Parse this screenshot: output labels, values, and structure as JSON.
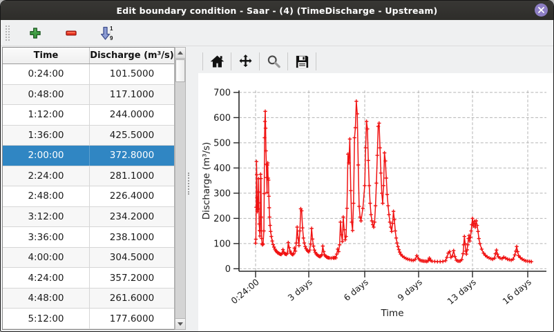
{
  "window": {
    "title": "Edit boundary condition - Saar -  (4) (TimeDischarge - Upstream)"
  },
  "icons": {
    "close": "x-in-circle",
    "add": "green-plus",
    "remove": "red-minus",
    "sort": "blue-arrow-down-1-9",
    "home": "house",
    "pan": "four-way-arrows",
    "zoom": "magnifier",
    "save": "floppy-disk",
    "scroll_up": "triangle-up",
    "scroll_down": "triangle-down"
  },
  "colors": {
    "titlebar_bg": "#302f2c",
    "close_button_bg": "#8d7ec4",
    "selection_blue": "#3086c3",
    "series_red": "#f01212",
    "accent_green": "#3f9e43",
    "accent_red": "#e8321e",
    "sort_blue": "#7486c4"
  },
  "table": {
    "columns": [
      "Time",
      "Discharge (m³/s)"
    ],
    "selected_row_index": 4,
    "rows": [
      [
        "0:24:00",
        "101.5000"
      ],
      [
        "0:48:00",
        "117.1000"
      ],
      [
        "1:12:00",
        "244.0000"
      ],
      [
        "1:36:00",
        "425.5000"
      ],
      [
        "2:00:00",
        "372.8000"
      ],
      [
        "2:24:00",
        "281.1000"
      ],
      [
        "2:48:00",
        "226.4000"
      ],
      [
        "3:12:00",
        "234.2000"
      ],
      [
        "3:36:00",
        "238.1000"
      ],
      [
        "4:00:00",
        "304.5000"
      ],
      [
        "4:24:00",
        "357.2000"
      ],
      [
        "4:48:00",
        "261.6000"
      ],
      [
        "5:12:00",
        "177.6000"
      ]
    ]
  },
  "chart_data": {
    "type": "line",
    "title": "",
    "xlabel": "Time",
    "ylabel": "Discharge (m³/s)",
    "x_tick_labels": [
      "0:24:00",
      "3 days",
      "6 days",
      "9 days",
      "13 days",
      "16 days"
    ],
    "x_tick_days": [
      0.017,
      3,
      6,
      9,
      13,
      16
    ],
    "y_ticks": [
      0,
      100,
      200,
      300,
      400,
      500,
      600,
      700
    ],
    "ylim": [
      -10,
      708
    ],
    "grid": true,
    "legend": "none",
    "marker": "+",
    "line_color": "#f01212",
    "series": [
      {
        "name": "Discharge",
        "points": [
          [
            0.017,
            101.5
          ],
          [
            0.033,
            117.1
          ],
          [
            0.05,
            244.0
          ],
          [
            0.067,
            425.5
          ],
          [
            0.083,
            372.8
          ],
          [
            0.1,
            281.1
          ],
          [
            0.117,
            226.4
          ],
          [
            0.133,
            234.2
          ],
          [
            0.15,
            238.1
          ],
          [
            0.167,
            304.5
          ],
          [
            0.183,
            357.2
          ],
          [
            0.2,
            261.6
          ],
          [
            0.217,
            177.6
          ],
          [
            0.24,
            152
          ],
          [
            0.26,
            130
          ],
          [
            0.28,
            150
          ],
          [
            0.3,
            375
          ],
          [
            0.32,
            358
          ],
          [
            0.34,
            205
          ],
          [
            0.36,
            120
          ],
          [
            0.38,
            100
          ],
          [
            0.4,
            95
          ],
          [
            0.44,
            98
          ],
          [
            0.48,
            150
          ],
          [
            0.5,
            298
          ],
          [
            0.52,
            520
          ],
          [
            0.54,
            585
          ],
          [
            0.56,
            625
          ],
          [
            0.58,
            558
          ],
          [
            0.6,
            468
          ],
          [
            0.62,
            415
          ],
          [
            0.64,
            362
          ],
          [
            0.66,
            303
          ],
          [
            0.68,
            412
          ],
          [
            0.7,
            420
          ],
          [
            0.72,
            360
          ],
          [
            0.74,
            352
          ],
          [
            0.76,
            288
          ],
          [
            0.78,
            242
          ],
          [
            0.8,
            205
          ],
          [
            0.83,
            172
          ],
          [
            0.86,
            148
          ],
          [
            0.9,
            128
          ],
          [
            0.95,
            110
          ],
          [
            1.0,
            96
          ],
          [
            1.05,
            86
          ],
          [
            1.1,
            78
          ],
          [
            1.15,
            72
          ],
          [
            1.2,
            68
          ],
          [
            1.25,
            64
          ],
          [
            1.3,
            62
          ],
          [
            1.35,
            60
          ],
          [
            1.4,
            58
          ],
          [
            1.45,
            57
          ],
          [
            1.5,
            61
          ],
          [
            1.55,
            76
          ],
          [
            1.6,
            66
          ],
          [
            1.65,
            60
          ],
          [
            1.7,
            58
          ],
          [
            1.75,
            57
          ],
          [
            1.8,
            62
          ],
          [
            1.85,
            104
          ],
          [
            1.9,
            84
          ],
          [
            1.95,
            70
          ],
          [
            2.0,
            62
          ],
          [
            2.05,
            58
          ],
          [
            2.1,
            56
          ],
          [
            2.15,
            60
          ],
          [
            2.2,
            82
          ],
          [
            2.25,
            70
          ],
          [
            2.3,
            102
          ],
          [
            2.35,
            165
          ],
          [
            2.4,
            122
          ],
          [
            2.45,
            92
          ],
          [
            2.5,
            150
          ],
          [
            2.55,
            238
          ],
          [
            2.6,
            230
          ],
          [
            2.65,
            162
          ],
          [
            2.7,
            122
          ],
          [
            2.75,
            102
          ],
          [
            2.8,
            88
          ],
          [
            2.85,
            80
          ],
          [
            2.9,
            74
          ],
          [
            2.95,
            70
          ],
          [
            3.0,
            67
          ],
          [
            3.05,
            74
          ],
          [
            3.1,
            98
          ],
          [
            3.15,
            160
          ],
          [
            3.2,
            118
          ],
          [
            3.25,
            90
          ],
          [
            3.3,
            74
          ],
          [
            3.35,
            65
          ],
          [
            3.4,
            59
          ],
          [
            3.45,
            55
          ],
          [
            3.5,
            52
          ],
          [
            3.55,
            50
          ],
          [
            3.6,
            48
          ],
          [
            3.65,
            51
          ],
          [
            3.7,
            56
          ],
          [
            3.75,
            90
          ],
          [
            3.8,
            68
          ],
          [
            3.85,
            55
          ],
          [
            3.9,
            50
          ],
          [
            3.95,
            47
          ],
          [
            4.0,
            45
          ],
          [
            4.05,
            44
          ],
          [
            4.1,
            43
          ],
          [
            4.2,
            42
          ],
          [
            4.3,
            44
          ],
          [
            4.35,
            42
          ],
          [
            4.4,
            45
          ],
          [
            4.45,
            43
          ],
          [
            4.5,
            58
          ],
          [
            4.55,
            78
          ],
          [
            4.6,
            68
          ],
          [
            4.65,
            95
          ],
          [
            4.7,
            185
          ],
          [
            4.75,
            135
          ],
          [
            4.8,
            108
          ],
          [
            4.85,
            205
          ],
          [
            4.9,
            155
          ],
          [
            4.95,
            115
          ],
          [
            5.0,
            128
          ],
          [
            5.05,
            240
          ],
          [
            5.1,
            455
          ],
          [
            5.15,
            420
          ],
          [
            5.2,
            515
          ],
          [
            5.25,
            310
          ],
          [
            5.3,
            185
          ],
          [
            5.35,
            152
          ],
          [
            5.4,
            260
          ],
          [
            5.45,
            520
          ],
          [
            5.5,
            560
          ],
          [
            5.55,
            665
          ],
          [
            5.6,
            615
          ],
          [
            5.65,
            412
          ],
          [
            5.7,
            248
          ],
          [
            5.75,
            205
          ],
          [
            5.8,
            190
          ],
          [
            5.9,
            240
          ],
          [
            6.0,
            330
          ],
          [
            6.05,
            480
          ],
          [
            6.1,
            585
          ],
          [
            6.15,
            555
          ],
          [
            6.2,
            430
          ],
          [
            6.25,
            330
          ],
          [
            6.3,
            260
          ],
          [
            6.35,
            215
          ],
          [
            6.4,
            190
          ],
          [
            6.45,
            175
          ],
          [
            6.5,
            165
          ],
          [
            6.55,
            185
          ],
          [
            6.6,
            250
          ],
          [
            6.65,
            340
          ],
          [
            6.7,
            450
          ],
          [
            6.75,
            565
          ],
          [
            6.8,
            578
          ],
          [
            6.85,
            480
          ],
          [
            6.9,
            380
          ],
          [
            6.95,
            300
          ],
          [
            7.0,
            260
          ],
          [
            7.05,
            330
          ],
          [
            7.1,
            460
          ],
          [
            7.15,
            428
          ],
          [
            7.2,
            360
          ],
          [
            7.25,
            295
          ],
          [
            7.3,
            250
          ],
          [
            7.35,
            215
          ],
          [
            7.4,
            185
          ],
          [
            7.45,
            165
          ],
          [
            7.5,
            148
          ],
          [
            7.55,
            180
          ],
          [
            7.6,
            228
          ],
          [
            7.65,
            195
          ],
          [
            7.7,
            150
          ],
          [
            7.75,
            122
          ],
          [
            7.8,
            102
          ],
          [
            7.85,
            88
          ],
          [
            7.9,
            76
          ],
          [
            7.95,
            66
          ],
          [
            8.0,
            58
          ],
          [
            8.1,
            50
          ],
          [
            8.2,
            45
          ],
          [
            8.3,
            41
          ],
          [
            8.4,
            38
          ],
          [
            8.5,
            36
          ],
          [
            8.6,
            34
          ],
          [
            8.7,
            33
          ],
          [
            8.8,
            36
          ],
          [
            8.9,
            52
          ],
          [
            9.0,
            40
          ],
          [
            9.1,
            34
          ],
          [
            9.2,
            32
          ],
          [
            9.3,
            31
          ],
          [
            9.4,
            30
          ],
          [
            9.5,
            30
          ],
          [
            9.6,
            29
          ],
          [
            9.7,
            31
          ],
          [
            9.8,
            42
          ],
          [
            9.9,
            33
          ],
          [
            10.0,
            30
          ],
          [
            10.2,
            29
          ],
          [
            10.4,
            28
          ],
          [
            10.6,
            28
          ],
          [
            10.8,
            29
          ],
          [
            11.0,
            32
          ],
          [
            11.1,
            45
          ],
          [
            11.2,
            62
          ],
          [
            11.3,
            68
          ],
          [
            11.4,
            45
          ],
          [
            11.5,
            50
          ],
          [
            11.6,
            72
          ],
          [
            11.7,
            48
          ],
          [
            11.8,
            34
          ],
          [
            11.9,
            31
          ],
          [
            12.0,
            30
          ],
          [
            12.1,
            31
          ],
          [
            12.2,
            36
          ],
          [
            12.3,
            60
          ],
          [
            12.35,
            95
          ],
          [
            12.4,
            128
          ],
          [
            12.45,
            100
          ],
          [
            12.5,
            70
          ],
          [
            12.55,
            58
          ],
          [
            12.6,
            75
          ],
          [
            12.65,
            95
          ],
          [
            12.7,
            120
          ],
          [
            12.75,
            132
          ],
          [
            12.8,
            110
          ],
          [
            12.85,
            125
          ],
          [
            12.9,
            150
          ],
          [
            12.95,
            175
          ],
          [
            13.0,
            200
          ],
          [
            13.05,
            170
          ],
          [
            13.1,
            188
          ],
          [
            13.15,
            165
          ],
          [
            13.2,
            190
          ],
          [
            13.25,
            172
          ],
          [
            13.3,
            148
          ],
          [
            13.35,
            120
          ],
          [
            13.4,
            100
          ],
          [
            13.5,
            78
          ],
          [
            13.6,
            62
          ],
          [
            13.7,
            53
          ],
          [
            13.8,
            47
          ],
          [
            13.9,
            43
          ],
          [
            14.0,
            40
          ],
          [
            14.1,
            38
          ],
          [
            14.2,
            42
          ],
          [
            14.25,
            60
          ],
          [
            14.3,
            74
          ],
          [
            14.35,
            58
          ],
          [
            14.4,
            48
          ],
          [
            14.5,
            42
          ],
          [
            14.6,
            40
          ],
          [
            14.7,
            46
          ],
          [
            14.8,
            42
          ],
          [
            14.9,
            38
          ],
          [
            15.0,
            36
          ],
          [
            15.1,
            34
          ],
          [
            15.2,
            38
          ],
          [
            15.3,
            55
          ],
          [
            15.35,
            70
          ],
          [
            15.4,
            88
          ],
          [
            15.45,
            68
          ],
          [
            15.5,
            52
          ],
          [
            15.6,
            44
          ],
          [
            15.7,
            38
          ],
          [
            15.8,
            34
          ],
          [
            15.9,
            31
          ],
          [
            16.0,
            30
          ],
          [
            16.1,
            29
          ],
          [
            16.2,
            28
          ]
        ]
      }
    ]
  }
}
